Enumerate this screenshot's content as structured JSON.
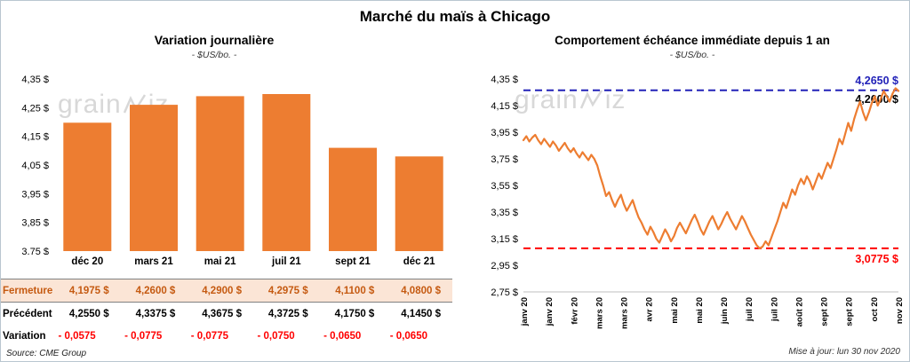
{
  "page": {
    "title": "Marché du maïs à Chicago",
    "source": "Source: CME Group",
    "updated": "Mise à jour: lun 30 nov 2020",
    "watermark": {
      "prefix": "grain",
      "suffix": "iz"
    }
  },
  "left": {
    "title": "Variation journalière",
    "subtitle": "- $US/bo. -",
    "table": {
      "rows": [
        {
          "label": "Fermeture",
          "values": [
            "4,1975 $",
            "4,2600 $",
            "4,2900 $",
            "4,2975 $",
            "4,1100 $",
            "4,0800 $"
          ]
        },
        {
          "label": "Précédent",
          "values": [
            "4,2550 $",
            "4,3375 $",
            "4,3675 $",
            "4,3725 $",
            "4,1750 $",
            "4,1450 $"
          ]
        },
        {
          "label": "Variation",
          "values": [
            "- 0,0575",
            "- 0,0775",
            "- 0,0775",
            "- 0,0750",
            "- 0,0650",
            "- 0,0650"
          ]
        }
      ]
    }
  },
  "right": {
    "title": "Comportement échéance immédiate depuis 1 an",
    "subtitle": "- $US/bo. -"
  },
  "chart_data": [
    {
      "type": "bar",
      "title": "Variation journalière",
      "units": "$US/bo.",
      "categories": [
        "déc 20",
        "mars 21",
        "mai 21",
        "juil 21",
        "sept 21",
        "déc 21"
      ],
      "values": [
        4.1975,
        4.26,
        4.29,
        4.2975,
        4.11,
        4.08
      ],
      "previous": [
        4.255,
        4.3375,
        4.3675,
        4.3725,
        4.175,
        4.145
      ],
      "variation": [
        -0.0575,
        -0.0775,
        -0.0775,
        -0.075,
        -0.065,
        -0.065
      ],
      "ylim": [
        3.75,
        4.35
      ],
      "yticks": [
        "4,35 $",
        "4,25 $",
        "4,15 $",
        "4,05 $",
        "3,95 $",
        "3,85 $",
        "3,75 $"
      ],
      "bar_color": "#ED7D31",
      "grid": false,
      "legend": "none"
    },
    {
      "type": "line",
      "title": "Comportement échéance immédiate depuis 1 an",
      "units": "$US/bo.",
      "ylim": [
        2.75,
        4.35
      ],
      "yticks": [
        "4,35 $",
        "4,15 $",
        "3,95 $",
        "3,75 $",
        "3,55 $",
        "3,35 $",
        "3,15 $",
        "2,95 $",
        "2,75 $"
      ],
      "xticklabels": [
        "janv 20",
        "janv 20",
        "févr 20",
        "mars 20",
        "mars 20",
        "avr 20",
        "mai 20",
        "mai 20",
        "juin 20",
        "juil 20",
        "juil 20",
        "août 20",
        "sept 20",
        "sept 20",
        "oct 20",
        "nov 20"
      ],
      "line_color": "#ED7D31",
      "grid": false,
      "legend": "none",
      "reference_lines": [
        {
          "value": 4.265,
          "color": "#2222B8",
          "style": "dashed",
          "label": "4,2650 $"
        },
        {
          "value": 3.0775,
          "color": "#FF0000",
          "style": "dashed",
          "label": "3,0775 $"
        }
      ],
      "last_value_label": "4,2600 $",
      "values": [
        3.89,
        3.92,
        3.88,
        3.91,
        3.93,
        3.89,
        3.86,
        3.9,
        3.87,
        3.84,
        3.88,
        3.85,
        3.81,
        3.84,
        3.87,
        3.83,
        3.8,
        3.83,
        3.79,
        3.76,
        3.8,
        3.77,
        3.74,
        3.78,
        3.75,
        3.7,
        3.62,
        3.55,
        3.47,
        3.5,
        3.44,
        3.39,
        3.44,
        3.48,
        3.41,
        3.36,
        3.4,
        3.44,
        3.37,
        3.31,
        3.27,
        3.22,
        3.18,
        3.24,
        3.2,
        3.15,
        3.12,
        3.17,
        3.22,
        3.18,
        3.13,
        3.17,
        3.23,
        3.27,
        3.23,
        3.19,
        3.24,
        3.29,
        3.33,
        3.28,
        3.22,
        3.18,
        3.23,
        3.28,
        3.32,
        3.27,
        3.22,
        3.26,
        3.31,
        3.35,
        3.3,
        3.26,
        3.22,
        3.27,
        3.32,
        3.28,
        3.23,
        3.18,
        3.14,
        3.1,
        3.0775,
        3.09,
        3.13,
        3.1,
        3.16,
        3.22,
        3.28,
        3.35,
        3.42,
        3.38,
        3.45,
        3.52,
        3.48,
        3.55,
        3.6,
        3.56,
        3.62,
        3.58,
        3.52,
        3.58,
        3.64,
        3.6,
        3.66,
        3.72,
        3.68,
        3.75,
        3.82,
        3.9,
        3.86,
        3.94,
        4.02,
        3.96,
        4.05,
        4.12,
        4.18,
        4.1,
        4.04,
        4.1,
        4.17,
        4.22,
        4.15,
        4.2,
        4.26,
        4.22,
        4.18,
        4.24,
        4.28,
        4.26
      ]
    }
  ]
}
